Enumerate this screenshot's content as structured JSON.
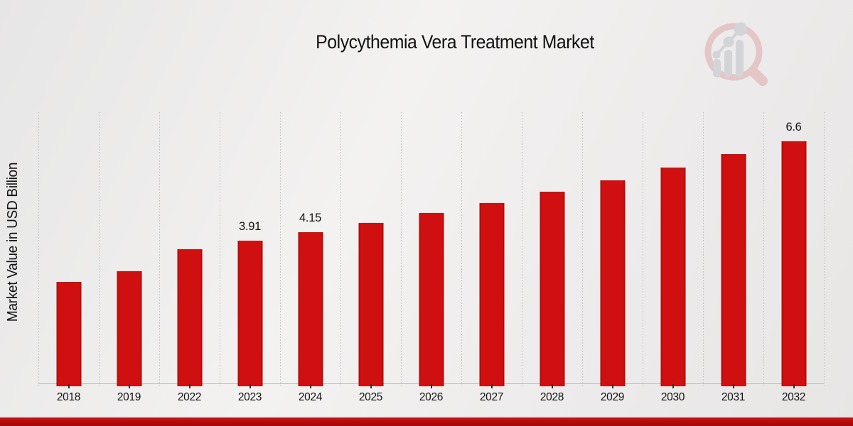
{
  "page": {
    "title": "Polycythemia Vera Treatment Market",
    "ylabel": "Market Value in USD Billion"
  },
  "chart_data": {
    "type": "bar",
    "title": "Polycythemia Vera Treatment Market",
    "xlabel": "",
    "ylabel": "Market Value in USD Billion",
    "categories": [
      "2018",
      "2019",
      "2022",
      "2023",
      "2024",
      "2025",
      "2026",
      "2027",
      "2028",
      "2029",
      "2030",
      "2031",
      "2032"
    ],
    "values": [
      2.8,
      3.1,
      3.69,
      3.91,
      4.15,
      4.4,
      4.66,
      4.94,
      5.24,
      5.55,
      5.89,
      6.24,
      6.6
    ],
    "bar_labels": [
      "",
      "",
      "",
      "3.91",
      "4.15",
      "",
      "",
      "",
      "",
      "",
      "",
      "",
      "6.6"
    ],
    "ylim": [
      0,
      7.3
    ],
    "grid": "vertical-dashed",
    "legend_position": "none",
    "bar_color": "#cd0e0e",
    "footer_band_color": "#b20a0a"
  }
}
